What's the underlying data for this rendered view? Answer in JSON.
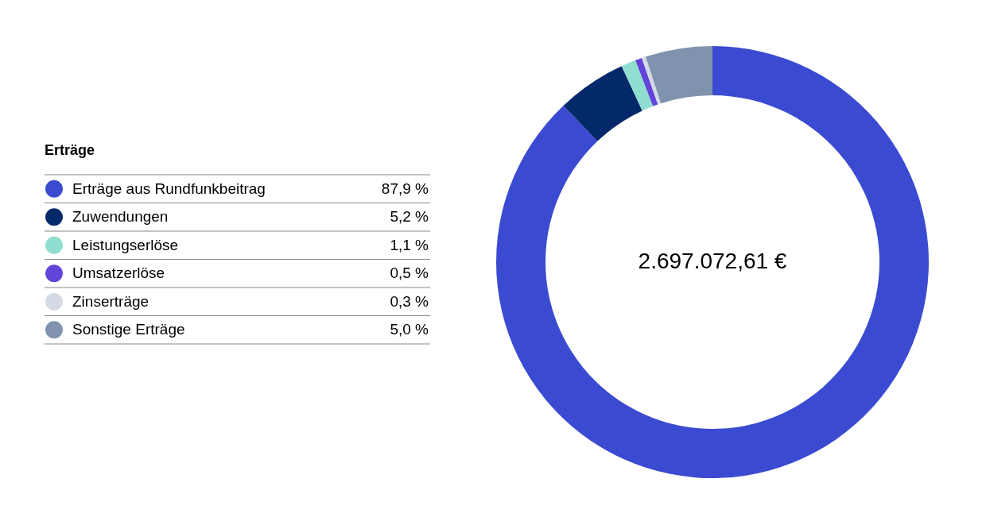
{
  "chart_data": {
    "type": "donut",
    "legend_title": "Erträge",
    "categories": [
      "Erträge aus Rundfunkbeitrag",
      "Zuwendungen",
      "Leistungserlöse",
      "Umsatzerlöse",
      "Zinserträge",
      "Sonstige Erträge"
    ],
    "values": [
      87.9,
      5.2,
      1.1,
      0.5,
      0.3,
      5.0
    ],
    "value_labels": [
      "87,9 %",
      "5,2 %",
      "1,1 %",
      "0,5 %",
      "0,3 %",
      "5,0 %"
    ],
    "colors": [
      "#3a4bd1",
      "#03296a",
      "#8fded0",
      "#6344d9",
      "#d5dbe6",
      "#8093ae"
    ],
    "legend": "left",
    "annotations": [
      "2.697.072,61 €"
    ]
  }
}
